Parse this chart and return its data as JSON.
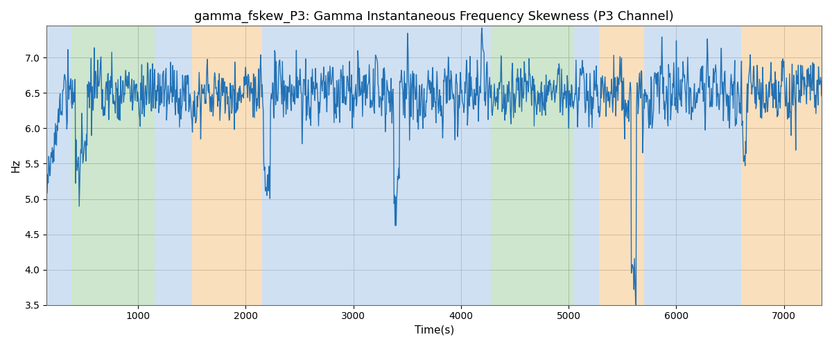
{
  "title": "gamma_fskew_P3: Gamma Instantaneous Frequency Skewness (P3 Channel)",
  "xlabel": "Time(s)",
  "ylabel": "Hz",
  "xlim": [
    150,
    7350
  ],
  "ylim": [
    3.5,
    7.45
  ],
  "yticks": [
    3.5,
    4.0,
    4.5,
    5.0,
    5.5,
    6.0,
    6.5,
    7.0
  ],
  "xticks": [
    1000,
    2000,
    3000,
    4000,
    5000,
    6000,
    7000
  ],
  "line_color": "#2171b5",
  "line_width": 1.0,
  "background_color": "#ffffff",
  "grid_color": "#aaaaaa",
  "title_fontsize": 13,
  "label_fontsize": 11,
  "bg_bands": [
    {
      "xstart": 150,
      "xend": 380,
      "color": "#a8c8e8",
      "alpha": 0.55
    },
    {
      "xstart": 380,
      "xend": 1150,
      "color": "#90c990",
      "alpha": 0.45
    },
    {
      "xstart": 1150,
      "xend": 1500,
      "color": "#a8c8e8",
      "alpha": 0.55
    },
    {
      "xstart": 1500,
      "xend": 2150,
      "color": "#f5c07a",
      "alpha": 0.5
    },
    {
      "xstart": 2150,
      "xend": 4100,
      "color": "#a8c8e8",
      "alpha": 0.55
    },
    {
      "xstart": 4100,
      "xend": 4280,
      "color": "#a8c8e8",
      "alpha": 0.55
    },
    {
      "xstart": 4280,
      "xend": 5050,
      "color": "#90c990",
      "alpha": 0.45
    },
    {
      "xstart": 5050,
      "xend": 5280,
      "color": "#a8c8e8",
      "alpha": 0.55
    },
    {
      "xstart": 5280,
      "xend": 5700,
      "color": "#f5c07a",
      "alpha": 0.5
    },
    {
      "xstart": 5700,
      "xend": 6600,
      "color": "#a8c8e8",
      "alpha": 0.55
    },
    {
      "xstart": 6600,
      "xend": 7350,
      "color": "#f5c07a",
      "alpha": 0.5
    }
  ],
  "seed": 17,
  "n_points": 1500,
  "t_start": 150,
  "t_end": 7350
}
